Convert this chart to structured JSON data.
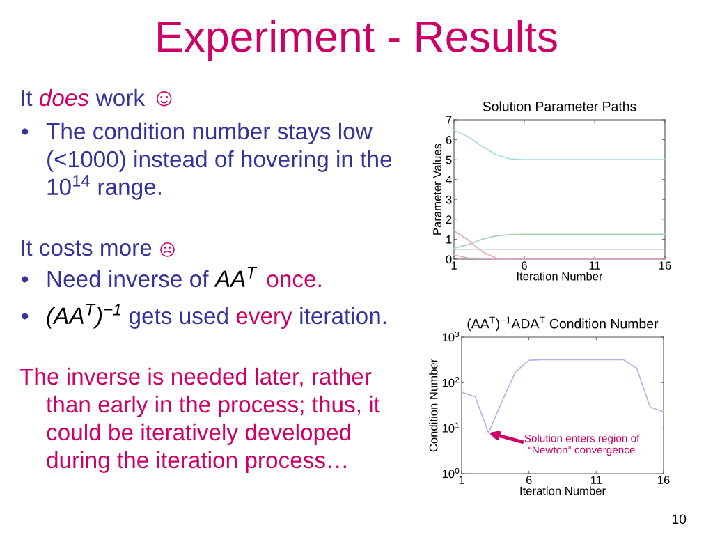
{
  "chart_data": [
    {
      "type": "other",
      "title": "Experiment - Results",
      "annotations": [
        "It",
        "does",
        "work",
        "☺",
        "•",
        "The condition number stays low",
        "(<1000) instead of hovering in the",
        "10$^{14}$ range.",
        "It costs more",
        "☹",
        "•",
        "Need inverse of",
        "AA$^{T}$",
        "once.",
        "•",
        "(AA$^{T}$)$^{−1}$",
        "gets used",
        "every",
        "iteration.",
        "The inverse is needed later, rather",
        "than early in the process; thus, it",
        "could be iteratively developed",
        "during the iteration process…",
        "10"
      ]
    },
    {
      "type": "line",
      "title": "Solution Parameter Paths",
      "xlabel": "Iteration Number",
      "ylabel": "Parameter Values",
      "x": [
        1,
        2,
        3,
        4,
        5,
        6,
        7,
        8,
        9,
        10,
        11,
        12,
        13,
        14,
        15,
        16
      ],
      "series": [
        {
          "color": "#a8dcdc",
          "values": [
            6.47,
            6.15,
            5.67,
            5.25,
            5.04,
            5.0,
            5.0,
            5.0,
            5.0,
            5.0,
            5.0,
            5.0,
            5.0,
            5.0,
            5.0,
            5.0
          ]
        },
        {
          "color": "#a8d4b4",
          "values": [
            0.55,
            0.73,
            1.0,
            1.17,
            1.24,
            1.25,
            1.25,
            1.25,
            1.25,
            1.25,
            1.25,
            1.25,
            1.25,
            1.25,
            1.25,
            1.25
          ]
        },
        {
          "color": "#b4b4e4",
          "values": [
            0.5,
            0.5,
            0.5,
            0.5,
            0.5,
            0.5,
            0.5,
            0.5,
            0.5,
            0.5,
            0.5,
            0.5,
            0.5,
            0.5,
            0.5,
            0.5
          ]
        },
        {
          "color": "#e4a8b8",
          "values": [
            1.43,
            0.97,
            0.38,
            0.05,
            0,
            null,
            null,
            null,
            null,
            null,
            null,
            null,
            null,
            null,
            null,
            null
          ]
        },
        {
          "color": "#dca8d4",
          "values": [
            0.21,
            0.06,
            0.04,
            0.01,
            0,
            0,
            0,
            0,
            0,
            0,
            0,
            0,
            0,
            0,
            0,
            0
          ]
        }
      ],
      "xlim": [
        1,
        16
      ],
      "xticks": [
        1,
        6,
        11,
        16
      ],
      "ylim": [
        0,
        7
      ],
      "yticks": [
        0,
        1,
        2,
        3,
        4,
        5,
        6,
        7
      ]
    },
    {
      "type": "line",
      "title": "(AA$^{T}$)$^{−1}$ADA$^{T}$ Condition Number",
      "xlabel": "Iteration Number",
      "ylabel": "Condition Number",
      "x": [
        1,
        2,
        3,
        4,
        5,
        6,
        7,
        8,
        9,
        10,
        11,
        12,
        13,
        14,
        15,
        16
      ],
      "series": [
        {
          "color": "#b4b4e4",
          "values": [
            62,
            49,
            7.9,
            39,
            172,
            310,
            320,
            320,
            320,
            320,
            320,
            320,
            320,
            210,
            29,
            23
          ]
        }
      ],
      "log": true,
      "xlim": [
        1,
        16
      ],
      "xticks": [
        1,
        6,
        11,
        16
      ],
      "ylim": [
        1,
        1000
      ],
      "yticks": [
        {
          "value": 1,
          "label": "10$^{0}$"
        },
        {
          "value": 10,
          "label": "10$^{1}$"
        },
        {
          "value": 100,
          "label": "10$^{2}$"
        },
        {
          "value": 1000,
          "label": "10$^{3}$"
        }
      ],
      "annotations": [
        {
          "text": "Solution enters region of\n“Newton” convergence",
          "x": 3,
          "y": 7.9
        }
      ]
    }
  ]
}
